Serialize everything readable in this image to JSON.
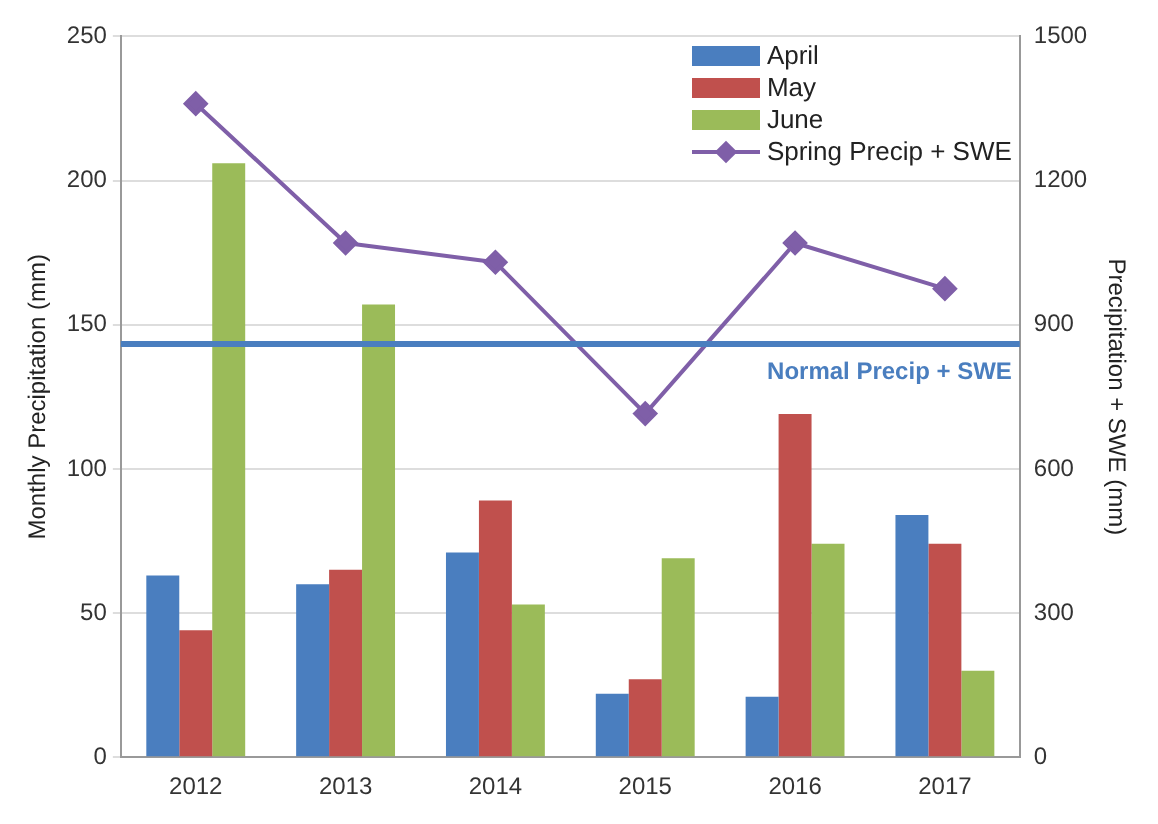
{
  "chart_data": {
    "type": "bar",
    "categories": [
      "2012",
      "2013",
      "2014",
      "2015",
      "2016",
      "2017"
    ],
    "ylabel": "Monthly Precipitation (mm)",
    "y2label": "Precipitation + SWE (mm)",
    "ylim": [
      0,
      250
    ],
    "yticks": [
      0,
      50,
      100,
      150,
      200,
      250
    ],
    "y2lim": [
      0,
      1500
    ],
    "y2ticks": [
      0,
      300,
      600,
      900,
      1200,
      1500
    ],
    "series": [
      {
        "name": "April",
        "color": "#4a7ebf",
        "values": [
          63,
          60,
          71,
          22,
          21,
          84
        ]
      },
      {
        "name": "May",
        "color": "#c0504d",
        "values": [
          44,
          65,
          89,
          27,
          119,
          74
        ]
      },
      {
        "name": "June",
        "color": "#9bbb59",
        "values": [
          206,
          157,
          53,
          69,
          74,
          30
        ]
      },
      {
        "name": "Spring Precip + SWE",
        "type": "line",
        "axis": "y2",
        "color": "#7f5fa8",
        "marker": "diamond",
        "values": [
          1360,
          1070,
          1030,
          715,
          1070,
          975
        ]
      }
    ],
    "ref_lines": [
      {
        "axis": "y2",
        "value": 860,
        "label": "Normal Precip + SWE",
        "color": "#4a7ebf"
      }
    ],
    "grid": "y",
    "legend": "top right"
  }
}
